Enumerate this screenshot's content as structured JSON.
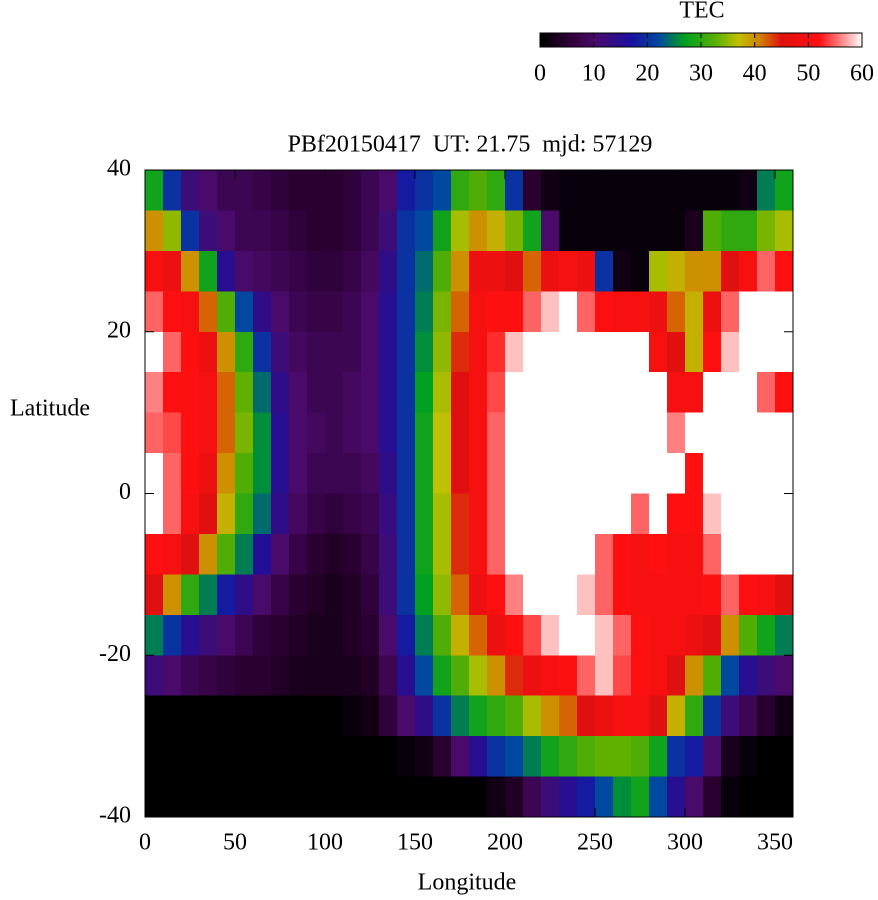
{
  "chart_data": {
    "type": "heatmap",
    "title": "PBf20150417  UT: 21.75  mjd: 57129",
    "xlabel": "Longitude",
    "ylabel": "Latitude",
    "colorbar_label": "TEC",
    "xlim": [
      0,
      360
    ],
    "ylim": [
      -40,
      40
    ],
    "xticks": [
      0,
      50,
      100,
      150,
      200,
      250,
      300,
      350
    ],
    "yticks": [
      -40,
      -20,
      0,
      20,
      40
    ],
    "clim": [
      0,
      60
    ],
    "cticks": [
      0,
      10,
      20,
      30,
      40,
      50,
      60
    ],
    "colormap": [
      [
        0,
        "#000000"
      ],
      [
        5,
        "#2a0030"
      ],
      [
        10,
        "#4a0a6a"
      ],
      [
        17,
        "#1a10a0"
      ],
      [
        22,
        "#0048a0"
      ],
      [
        27,
        "#00a020"
      ],
      [
        33,
        "#60b000"
      ],
      [
        37,
        "#c0c000"
      ],
      [
        41,
        "#d08000"
      ],
      [
        45,
        "#e01010"
      ],
      [
        52,
        "#ff1010"
      ],
      [
        56,
        "#ff8080"
      ],
      [
        60,
        "#ffffff"
      ]
    ],
    "x": [
      5,
      15,
      25,
      35,
      45,
      55,
      65,
      75,
      85,
      95,
      105,
      115,
      125,
      135,
      145,
      155,
      165,
      175,
      185,
      195,
      205,
      215,
      225,
      235,
      245,
      255,
      265,
      275,
      285,
      295,
      305,
      315,
      325,
      335,
      345,
      355
    ],
    "y": [
      37.5,
      32.5,
      27.5,
      22.5,
      17.5,
      12.5,
      7.5,
      2.5,
      -2.5,
      -7.5,
      -12.5,
      -17.5,
      -22.5,
      -27.5,
      -32.5,
      -37.5
    ],
    "z": [
      [
        28,
        20,
        12,
        10,
        8,
        8,
        7,
        6,
        5,
        5,
        5,
        6,
        8,
        10,
        18,
        20,
        22,
        30,
        32,
        30,
        20,
        5,
        2,
        1,
        1,
        1,
        1,
        1,
        1,
        1,
        1,
        1,
        1,
        2,
        25,
        28
      ],
      [
        40,
        35,
        20,
        12,
        10,
        8,
        8,
        7,
        6,
        5,
        5,
        6,
        8,
        12,
        20,
        22,
        28,
        36,
        40,
        38,
        34,
        28,
        10,
        1,
        1,
        1,
        1,
        1,
        1,
        1,
        3,
        32,
        30,
        30,
        34,
        36
      ],
      [
        50,
        48,
        40,
        28,
        15,
        10,
        9,
        8,
        7,
        6,
        6,
        7,
        9,
        14,
        20,
        24,
        32,
        40,
        48,
        48,
        45,
        42,
        48,
        50,
        48,
        20,
        2,
        1,
        36,
        38,
        40,
        40,
        45,
        50,
        55,
        52
      ],
      [
        55,
        52,
        50,
        42,
        32,
        22,
        14,
        10,
        8,
        7,
        7,
        8,
        10,
        15,
        20,
        25,
        34,
        42,
        50,
        52,
        52,
        55,
        58,
        60,
        55,
        52,
        50,
        50,
        48,
        42,
        38,
        48,
        55,
        60,
        60,
        60
      ],
      [
        60,
        55,
        52,
        48,
        40,
        30,
        20,
        12,
        9,
        8,
        8,
        8,
        10,
        15,
        20,
        26,
        35,
        44,
        50,
        53,
        58,
        60,
        60,
        60,
        60,
        60,
        60,
        60,
        50,
        45,
        38,
        52,
        58,
        60,
        60,
        60
      ],
      [
        56,
        52,
        52,
        50,
        42,
        33,
        24,
        14,
        10,
        8,
        8,
        9,
        10,
        15,
        20,
        27,
        36,
        45,
        50,
        54,
        60,
        60,
        60,
        60,
        60,
        60,
        60,
        60,
        60,
        50,
        50,
        60,
        60,
        60,
        55,
        52
      ],
      [
        55,
        54,
        52,
        50,
        42,
        34,
        26,
        15,
        10,
        9,
        8,
        9,
        10,
        15,
        20,
        28,
        37,
        45,
        50,
        55,
        60,
        60,
        60,
        60,
        60,
        60,
        60,
        60,
        60,
        56,
        60,
        60,
        60,
        60,
        60,
        60
      ],
      [
        60,
        55,
        52,
        48,
        40,
        32,
        26,
        15,
        10,
        8,
        8,
        8,
        9,
        14,
        20,
        28,
        37,
        45,
        50,
        55,
        60,
        60,
        60,
        60,
        60,
        60,
        60,
        60,
        60,
        60,
        52,
        60,
        60,
        60,
        60,
        60
      ],
      [
        60,
        55,
        50,
        45,
        38,
        30,
        24,
        14,
        9,
        7,
        6,
        7,
        8,
        13,
        20,
        28,
        36,
        44,
        50,
        55,
        60,
        60,
        60,
        60,
        60,
        60,
        60,
        55,
        60,
        52,
        52,
        58,
        60,
        60,
        60,
        60
      ],
      [
        52,
        50,
        45,
        40,
        32,
        25,
        16,
        10,
        7,
        5,
        4,
        5,
        7,
        12,
        20,
        28,
        36,
        44,
        50,
        55,
        60,
        60,
        60,
        60,
        60,
        55,
        52,
        50,
        52,
        50,
        50,
        55,
        60,
        60,
        60,
        60
      ],
      [
        45,
        40,
        30,
        25,
        18,
        14,
        10,
        7,
        5,
        4,
        3,
        4,
        6,
        12,
        20,
        27,
        35,
        42,
        48,
        52,
        56,
        60,
        60,
        60,
        58,
        55,
        52,
        50,
        50,
        50,
        50,
        52,
        55,
        52,
        50,
        45
      ],
      [
        25,
        20,
        15,
        12,
        10,
        8,
        6,
        5,
        4,
        3,
        3,
        4,
        5,
        10,
        18,
        25,
        32,
        38,
        42,
        48,
        52,
        54,
        58,
        60,
        60,
        58,
        55,
        52,
        50,
        50,
        48,
        45,
        40,
        32,
        28,
        25
      ],
      [
        12,
        10,
        8,
        7,
        6,
        5,
        5,
        4,
        3,
        3,
        3,
        3,
        4,
        8,
        15,
        22,
        28,
        32,
        36,
        40,
        44,
        48,
        50,
        52,
        55,
        58,
        54,
        52,
        50,
        45,
        40,
        32,
        22,
        15,
        12,
        10
      ],
      [
        0,
        0,
        0,
        0,
        0,
        0,
        0,
        0,
        0,
        0,
        0,
        1,
        2,
        6,
        10,
        14,
        20,
        25,
        28,
        30,
        32,
        36,
        40,
        42,
        45,
        48,
        50,
        50,
        45,
        38,
        30,
        20,
        12,
        8,
        5,
        2
      ],
      [
        0,
        0,
        0,
        0,
        0,
        0,
        0,
        0,
        0,
        0,
        0,
        0,
        0,
        0,
        1,
        2,
        5,
        10,
        15,
        20,
        22,
        25,
        28,
        30,
        32,
        33,
        33,
        32,
        28,
        20,
        18,
        10,
        3,
        1,
        0,
        0
      ],
      [
        0,
        0,
        0,
        0,
        0,
        0,
        0,
        0,
        0,
        0,
        0,
        0,
        0,
        0,
        0,
        0,
        0,
        0,
        0,
        2,
        4,
        8,
        12,
        15,
        18,
        22,
        26,
        28,
        22,
        15,
        10,
        5,
        1,
        0,
        0,
        0
      ]
    ]
  }
}
